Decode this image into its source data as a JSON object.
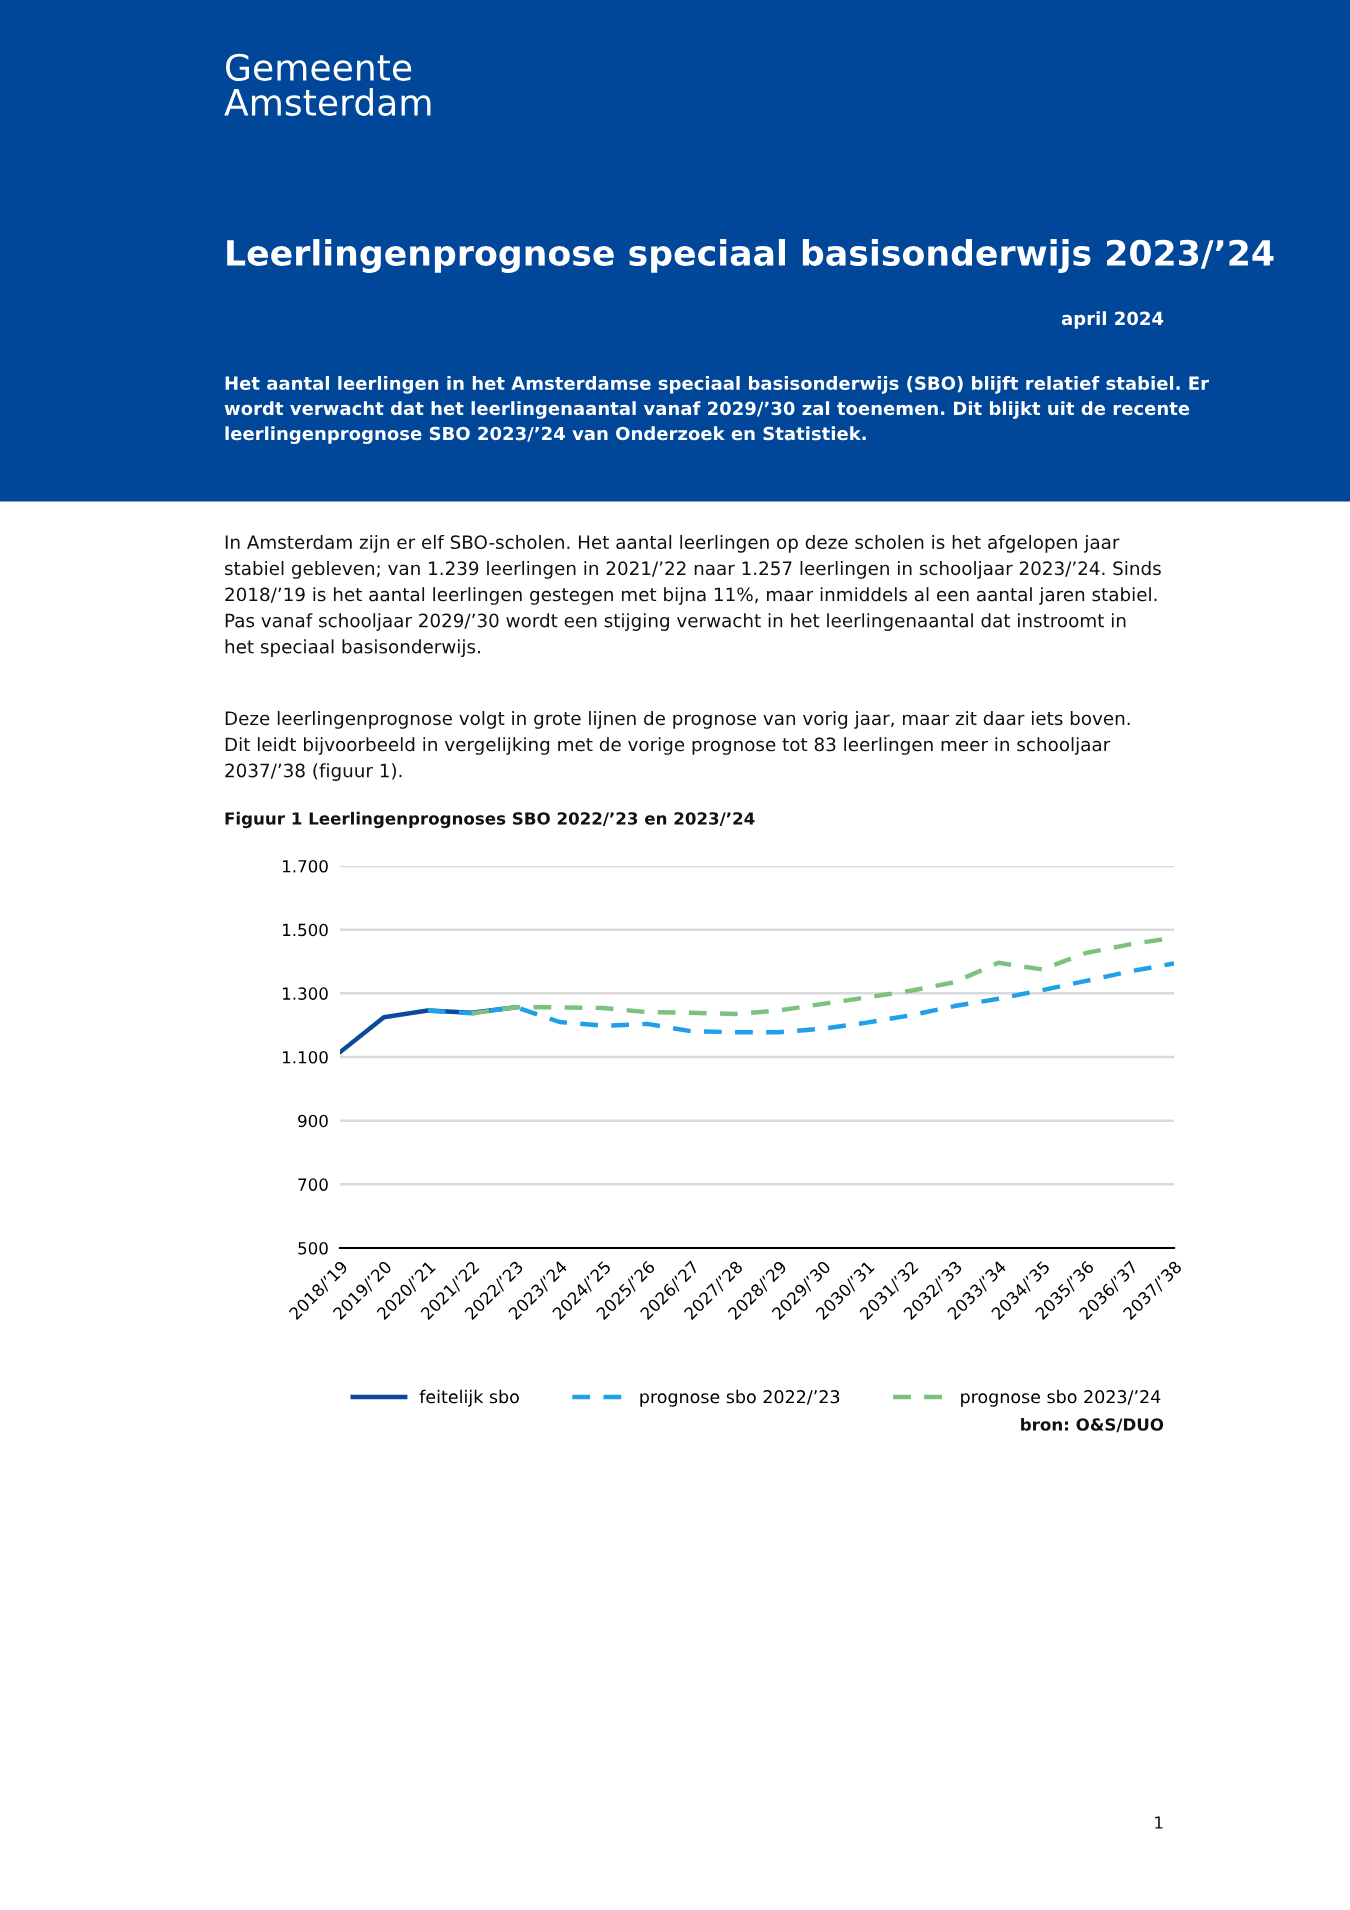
{
  "chart_data": {
    "type": "line",
    "title": "Leerlingenprognose speciaal basisonderwijs 2023/’24",
    "subtitle": "april 2024",
    "categories": [
      "2018/’19",
      "2019/’20",
      "2020/’21",
      "2021/’22",
      "2022/’23",
      "2023/’24",
      "2024/’25",
      "2025/’26",
      "2026/’27",
      "2027/’28",
      "2028/’29",
      "2029/’30",
      "2030/’31",
      "2031/’32",
      "2032/’33",
      "2033/’34",
      "2034/’35",
      "2035/’36",
      "2036/’37",
      "2037/’38"
    ],
    "series": [
      {
        "name": "feitelijk sbo",
        "color": "#0a4a9a",
        "line_style": "solid",
        "values": [
          1115,
          1225,
          1246,
          1239,
          1256,
          null,
          null,
          null,
          null,
          null,
          null,
          null,
          null,
          null,
          null,
          null,
          null,
          null,
          null,
          null
        ]
      },
      {
        "name": "prognose sbo 2022/’23",
        "color": "#1fa0e8",
        "line_style": "dashed",
        "values": [
          null,
          null,
          1246,
          1237,
          1257,
          1210,
          1198,
          1204,
          1181,
          1178,
          1178,
          1189,
          1208,
          1231,
          1260,
          1283,
          1310,
          1339,
          1369,
          1394
        ]
      },
      {
        "name": "prognose sbo 2023/’24",
        "color": "#7cc27e",
        "line_style": "dashed",
        "values": [
          null,
          null,
          null,
          1237,
          1256,
          1256,
          1254,
          1241,
          1239,
          1235,
          1246,
          1267,
          1287,
          1308,
          1335,
          1396,
          1375,
          1427,
          1454,
          1475
        ]
      }
    ],
    "ylim": [
      500,
      1700
    ],
    "yticks": [
      {
        "value": 500,
        "label": "500"
      },
      {
        "value": 700,
        "label": "700"
      },
      {
        "value": 900,
        "label": "900"
      },
      {
        "value": 1100,
        "label": "1.100"
      },
      {
        "value": 1300,
        "label": "1.300"
      },
      {
        "value": 1500,
        "label": "1.500"
      },
      {
        "value": 1700,
        "label": "1.700"
      }
    ],
    "grid": "y",
    "legend": "bottom",
    "marker": "none",
    "annotations": [
      "Gemeente\nAmsterdam",
      "Het aantal leerlingen in het Amsterdamse speciaal basisonderwijs (SBO) blijft relatief stabiel. Er\nwordt verwacht dat het leerlingenaantal vanaf 2029/’30 zal toenemen. Dit blijkt uit de recente\nleerlingenprognose SBO 2023/’24 van Onderzoek en Statistiek.",
      "In Amsterdam zijn er elf SBO-scholen. Het aantal leerlingen op deze scholen is het afgelopen jaar\nstabiel gebleven; van 1.239 leerlingen in 2021/’22 naar 1.257 leerlingen in schooljaar 2023/’24. Sinds\n2018/’19 is het aantal leerlingen gestegen met bijna 11%, maar inmiddels al een aantal jaren stabiel.\nPas vanaf schooljaar 2029/’30 wordt een stijging verwacht in het leerlingenaantal dat instroomt in\nhet speciaal basisonderwijs.",
      "Deze leerlingenprognose volgt in grote lijnen de prognose van vorig jaar, maar zit daar iets boven.\nDit leidt bijvoorbeeld in vergelijking met de vorige prognose tot 83 leerlingen meer in schooljaar\n2037/’38 (figuur 1).",
      "Figuur 1 Leerlingenprognoses SBO 2022/’23 en 2023/’24",
      "bron: O&S/DUO",
      "1"
    ]
  }
}
